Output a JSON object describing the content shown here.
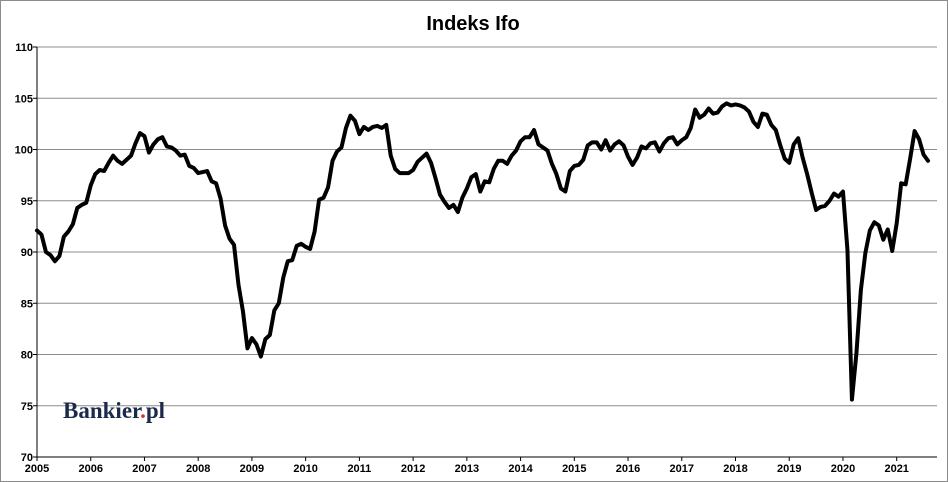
{
  "colors": {
    "line": "#000000",
    "grid": "#8c8c8c",
    "axis": "#000000",
    "logo": "#1b2a4a",
    "logo_dot": "#d9342b"
  },
  "logo": {
    "name": "Bankier",
    "dot": ".",
    "suffix": "pl"
  },
  "chart_data": {
    "type": "line",
    "title": "Indeks Ifo",
    "xlabel": "",
    "ylabel": "",
    "xlim": [
      2005.0,
      2021.75
    ],
    "ylim": [
      70,
      110
    ],
    "yticks": [
      70,
      75,
      80,
      85,
      90,
      95,
      100,
      105,
      110
    ],
    "xticks": [
      2005,
      2006,
      2007,
      2008,
      2009,
      2010,
      2011,
      2012,
      2013,
      2014,
      2015,
      2016,
      2017,
      2018,
      2019,
      2020,
      2021
    ],
    "grid": {
      "horizontal": true,
      "vertical": false
    },
    "legend": "none",
    "series": [
      {
        "x_start": 2005.0,
        "x_step_months": 1,
        "values": [
          92.1,
          91.7,
          90.0,
          89.7,
          89.1,
          89.6,
          91.5,
          92.0,
          92.7,
          94.3,
          94.6,
          94.8,
          96.5,
          97.6,
          98.0,
          97.9,
          98.7,
          99.4,
          98.9,
          98.6,
          99.0,
          99.4,
          100.6,
          101.6,
          101.3,
          99.7,
          100.5,
          101.0,
          101.2,
          100.3,
          100.2,
          99.9,
          99.4,
          99.5,
          98.4,
          98.2,
          97.7,
          97.8,
          97.9,
          96.9,
          96.7,
          95.2,
          92.6,
          91.3,
          90.7,
          86.8,
          84.2,
          80.6,
          81.6,
          81.0,
          79.8,
          81.5,
          81.9,
          84.3,
          85.0,
          87.5,
          89.1,
          89.2,
          90.6,
          90.8,
          90.5,
          90.3,
          92.0,
          95.1,
          95.3,
          96.3,
          98.9,
          99.8,
          100.2,
          102.1,
          103.3,
          102.8,
          101.5,
          102.2,
          101.9,
          102.2,
          102.3,
          102.1,
          102.4,
          99.4,
          98.1,
          97.7,
          97.7,
          97.7,
          98.0,
          98.8,
          99.2,
          99.6,
          98.7,
          97.2,
          95.6,
          94.9,
          94.3,
          94.6,
          93.9,
          95.3,
          96.2,
          97.3,
          97.6,
          95.9,
          96.9,
          96.8,
          98.1,
          98.9,
          98.9,
          98.6,
          99.4,
          99.9,
          100.8,
          101.2,
          101.2,
          101.9,
          100.5,
          100.2,
          99.9,
          98.6,
          97.6,
          96.2,
          95.9,
          97.9,
          98.4,
          98.5,
          99.0,
          100.4,
          100.7,
          100.7,
          100.0,
          100.9,
          99.9,
          100.5,
          100.8,
          100.4,
          99.3,
          98.5,
          99.2,
          100.3,
          100.1,
          100.6,
          100.7,
          99.8,
          100.6,
          101.1,
          101.2,
          100.5,
          100.9,
          101.2,
          102.1,
          103.9,
          103.1,
          103.4,
          104.0,
          103.5,
          103.6,
          104.2,
          104.5,
          104.3,
          104.4,
          104.3,
          104.1,
          103.7,
          102.7,
          102.2,
          103.5,
          103.4,
          102.4,
          101.9,
          100.4,
          99.1,
          98.7,
          100.5,
          101.1,
          99.2,
          97.6,
          95.8,
          94.1,
          94.4,
          94.5,
          95.0,
          95.7,
          95.4,
          95.9,
          90.2,
          75.6,
          80.1,
          86.3,
          89.9,
          92.1,
          92.9,
          92.6,
          91.2,
          92.2,
          90.1,
          92.8,
          96.7,
          96.6,
          99.1,
          101.8,
          101.0,
          99.5,
          98.9
        ]
      }
    ]
  }
}
